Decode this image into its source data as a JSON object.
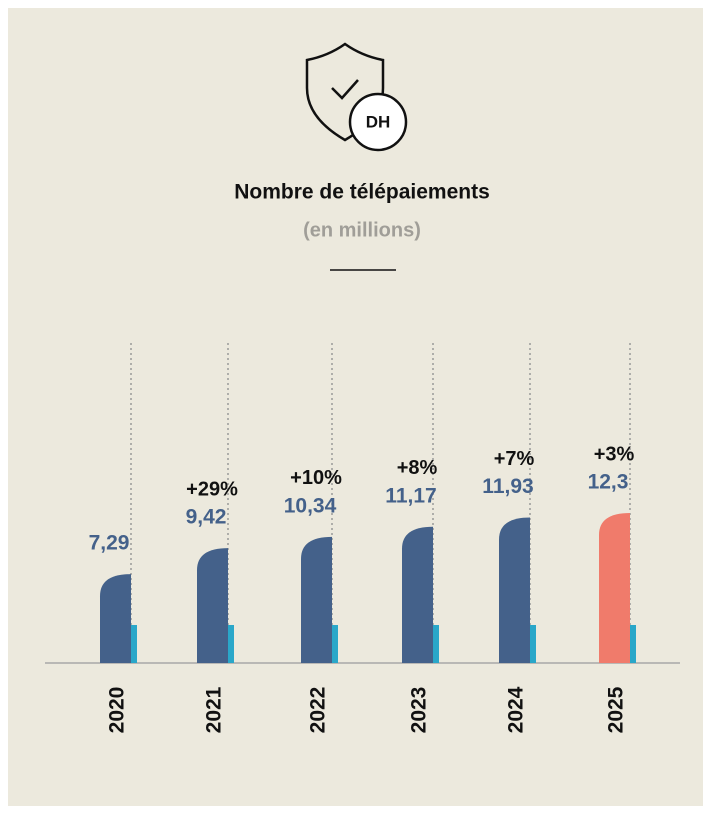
{
  "icon_label": "DH",
  "chart_data": {
    "type": "bar",
    "title": "Nombre de télépaiements",
    "subtitle": "(en millions)",
    "categories": [
      "2020",
      "2021",
      "2022",
      "2023",
      "2024",
      "2025"
    ],
    "values": [
      7.29,
      9.42,
      10.34,
      11.17,
      11.93,
      12.3
    ],
    "value_labels": [
      "7,29",
      "9,42",
      "10,34",
      "11,17",
      "11,93",
      "12,3"
    ],
    "annotations": [
      null,
      "+29%",
      "+10%",
      "+8%",
      "+7%",
      "+3%"
    ],
    "colors": [
      "#44618a",
      "#44618a",
      "#44618a",
      "#44618a",
      "#44618a",
      "#f07b6b"
    ],
    "accent_color": "#2aa7c9"
  }
}
